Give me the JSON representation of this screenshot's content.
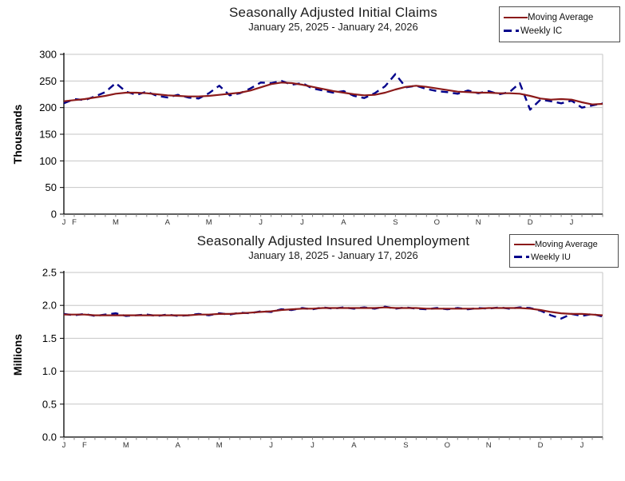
{
  "page": {
    "background": "#ffffff"
  },
  "colors": {
    "moving_average": "#8b1a1a",
    "weekly": "#00008b",
    "gridline": "#c6c6c6",
    "axis": "#000000",
    "tick": "#808080",
    "month_label": "#333333"
  },
  "chart_data": [
    {
      "type": "line",
      "title": "Seasonally Adjusted Initial Claims",
      "subtitle": "January 25, 2025 - January 24, 2026",
      "ylabel": "Thousands",
      "ylim": [
        0,
        300
      ],
      "yticks": [
        0,
        50,
        100,
        150,
        200,
        250,
        300
      ],
      "ytick_labels": [
        "0",
        "50",
        "100",
        "150",
        "200",
        "250",
        "300"
      ],
      "x_month_labels": [
        "J",
        "F",
        "M",
        "A",
        "M",
        "J",
        "J",
        "A",
        "S",
        "O",
        "N",
        "D",
        "J"
      ],
      "x_month_weeks": [
        0,
        1,
        5,
        10,
        14,
        19,
        23,
        27,
        32,
        36,
        40,
        45,
        49
      ],
      "grid": true,
      "legend_position": "top-right",
      "legend": [
        {
          "label": "Moving Average",
          "style": "solid",
          "color": "#8b1a1a"
        },
        {
          "label": "Weekly IC",
          "style": "dashed",
          "color": "#00008b"
        }
      ],
      "series": [
        {
          "name": "Moving Average",
          "values": [
            212,
            214,
            216,
            219,
            222,
            226,
            228,
            228,
            227,
            225,
            223,
            222,
            221,
            221,
            222,
            224,
            226,
            228,
            232,
            238,
            244,
            247,
            246,
            243,
            239,
            235,
            231,
            228,
            225,
            223,
            224,
            228,
            234,
            239,
            241,
            239,
            236,
            233,
            230,
            229,
            228,
            228,
            227,
            227,
            226,
            222,
            217,
            215,
            216,
            215,
            210,
            206,
            207
          ]
        },
        {
          "name": "Weekly IC",
          "values": [
            208,
            216,
            214,
            221,
            229,
            246,
            230,
            224,
            230,
            222,
            219,
            224,
            219,
            217,
            227,
            241,
            223,
            227,
            236,
            247,
            246,
            250,
            243,
            246,
            236,
            232,
            228,
            231,
            222,
            218,
            227,
            240,
            263,
            238,
            241,
            235,
            231,
            229,
            226,
            232,
            227,
            231,
            225,
            229,
            246,
            196,
            215,
            212,
            208,
            213,
            200,
            204,
            208
          ]
        }
      ]
    },
    {
      "type": "line",
      "title": "Seasonally Adjusted Insured Unemployment",
      "subtitle": "January 18, 2025 - January 17, 2026",
      "ylabel": "Millions",
      "ylim": [
        0,
        2.5
      ],
      "yticks": [
        0,
        0.5,
        1.0,
        1.5,
        2.0,
        2.5
      ],
      "ytick_labels": [
        "0.0",
        "0.5",
        "1.0",
        "1.5",
        "2.0",
        "2.5"
      ],
      "x_month_labels": [
        "J",
        "F",
        "M",
        "A",
        "M",
        "J",
        "J",
        "A",
        "S",
        "O",
        "N",
        "D",
        "J"
      ],
      "x_month_weeks": [
        0,
        2,
        6,
        11,
        15,
        20,
        24,
        28,
        33,
        37,
        41,
        46,
        50
      ],
      "grid": true,
      "legend_position": "top-right",
      "legend": [
        {
          "label": "Moving Average",
          "style": "solid",
          "color": "#8b1a1a"
        },
        {
          "label": "Weekly IU",
          "style": "dashed",
          "color": "#00008b"
        }
      ],
      "series": [
        {
          "name": "Moving Average",
          "values": [
            1.86,
            1.86,
            1.86,
            1.85,
            1.85,
            1.85,
            1.85,
            1.85,
            1.85,
            1.85,
            1.85,
            1.85,
            1.85,
            1.86,
            1.86,
            1.87,
            1.87,
            1.88,
            1.89,
            1.9,
            1.91,
            1.93,
            1.94,
            1.95,
            1.95,
            1.96,
            1.96,
            1.96,
            1.96,
            1.96,
            1.96,
            1.97,
            1.96,
            1.96,
            1.96,
            1.95,
            1.95,
            1.95,
            1.95,
            1.95,
            1.95,
            1.96,
            1.96,
            1.96,
            1.96,
            1.95,
            1.93,
            1.9,
            1.88,
            1.87,
            1.87,
            1.86,
            1.85
          ]
        },
        {
          "name": "Weekly IU",
          "values": [
            1.87,
            1.85,
            1.87,
            1.84,
            1.86,
            1.88,
            1.84,
            1.85,
            1.86,
            1.84,
            1.86,
            1.84,
            1.85,
            1.87,
            1.85,
            1.88,
            1.86,
            1.89,
            1.88,
            1.91,
            1.9,
            1.94,
            1.93,
            1.96,
            1.94,
            1.97,
            1.95,
            1.97,
            1.95,
            1.97,
            1.95,
            1.98,
            1.95,
            1.97,
            1.95,
            1.94,
            1.96,
            1.94,
            1.96,
            1.94,
            1.96,
            1.95,
            1.97,
            1.95,
            1.97,
            1.96,
            1.92,
            1.85,
            1.8,
            1.87,
            1.84,
            1.87,
            1.83
          ]
        }
      ]
    }
  ]
}
